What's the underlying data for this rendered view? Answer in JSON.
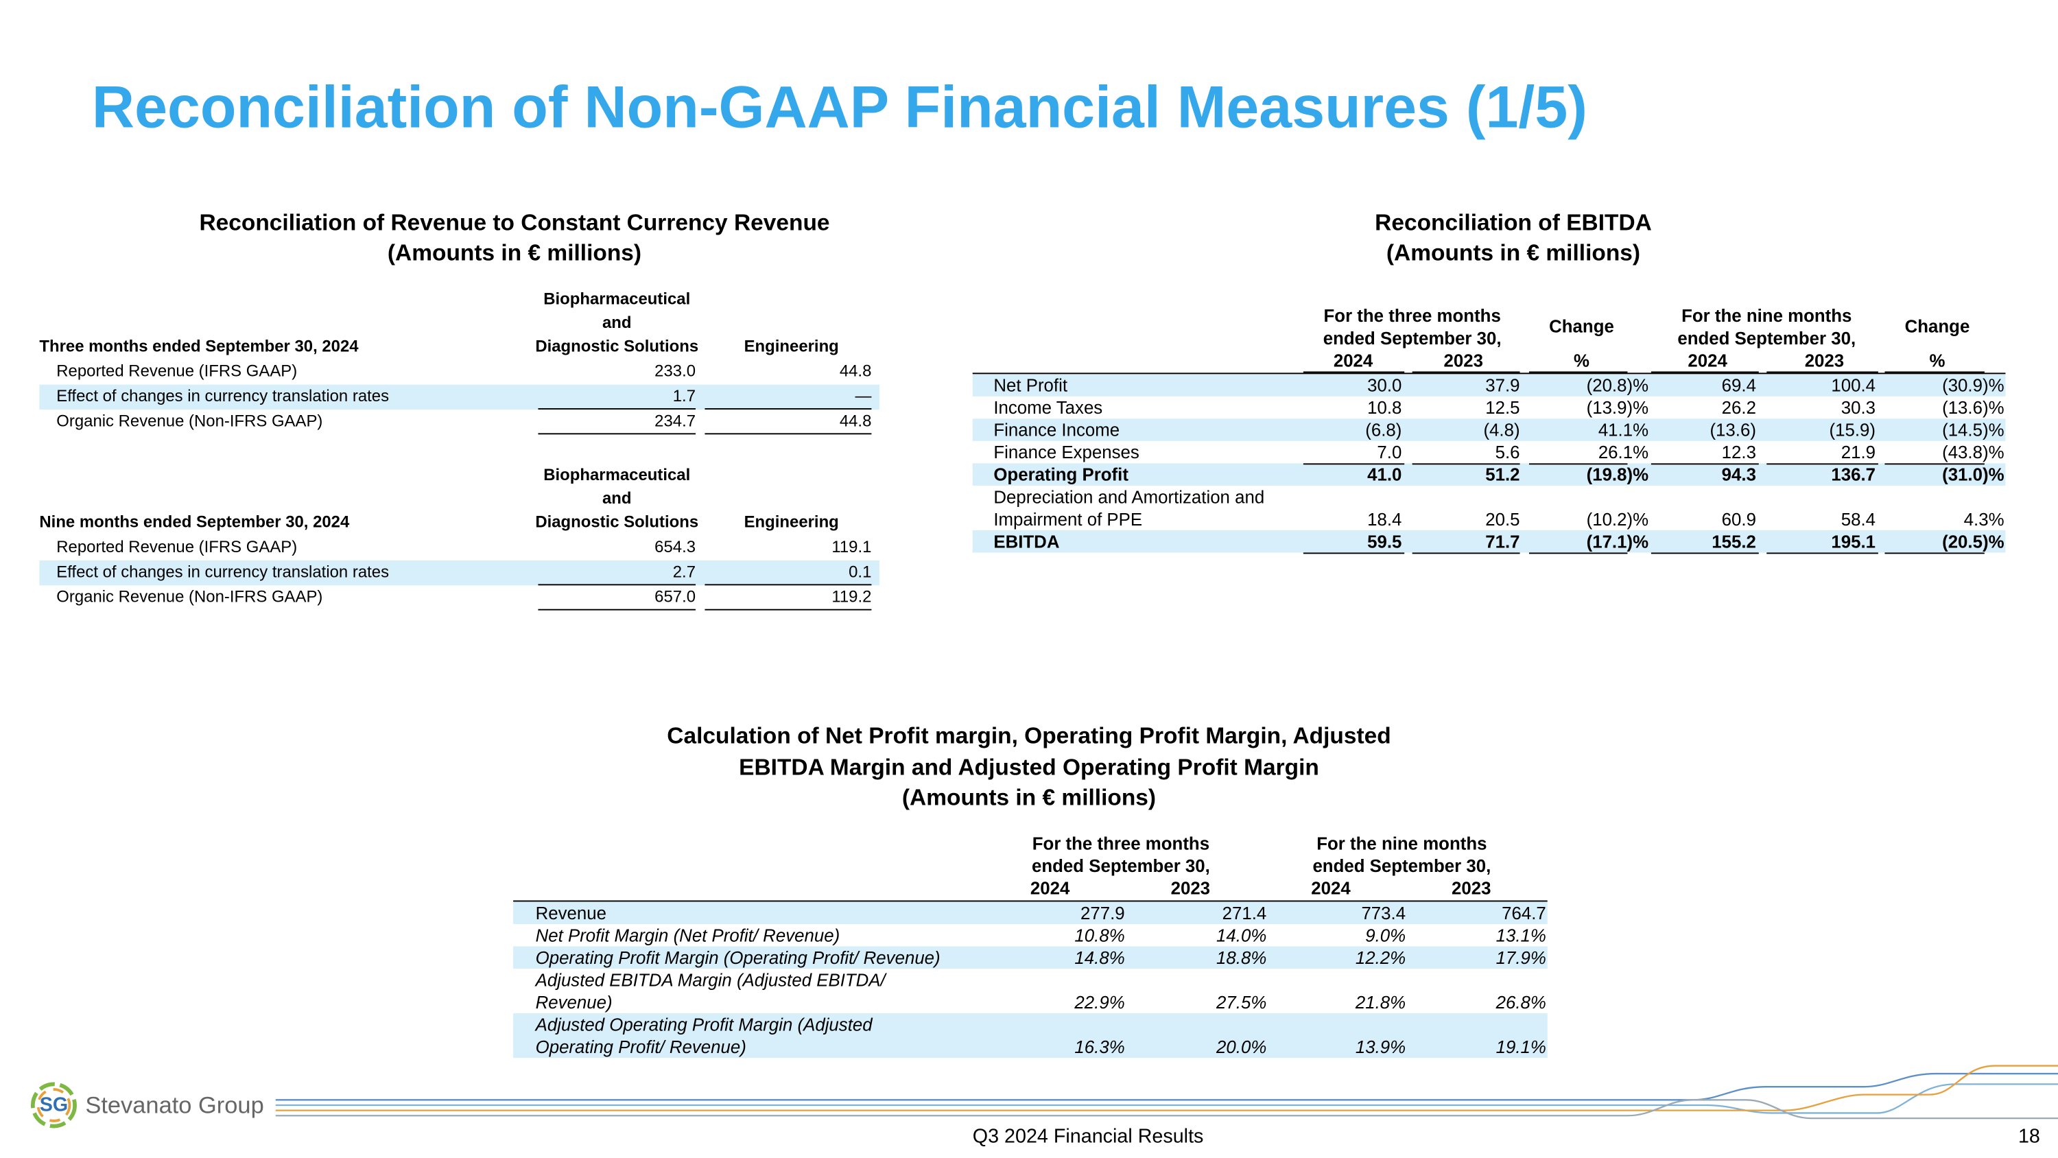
{
  "header": {
    "title": "Reconciliation of Non-GAAP Financial Measures (1/5)"
  },
  "revenue": {
    "title": [
      "Reconciliation of Revenue to Constant Currency Revenue",
      "(Amounts in € millions)"
    ],
    "blocks": [
      {
        "period": "Three months ended September 30, 2024",
        "columns": [
          [
            "Biopharmaceutical",
            "and",
            "Diagnostic Solutions"
          ],
          [
            "Engineering"
          ]
        ],
        "rows": [
          [
            "Reported Revenue (IFRS GAAP)",
            "233.0",
            "44.8"
          ],
          [
            "Effect of changes in currency translation rates",
            "1.7",
            "—"
          ],
          [
            "Organic Revenue (Non-IFRS GAAP)",
            "234.7",
            "44.8"
          ]
        ]
      },
      {
        "period": "Nine months ended September 30, 2024",
        "columns": [
          [
            "Biopharmaceutical",
            "and",
            "Diagnostic Solutions"
          ],
          [
            "Engineering"
          ]
        ],
        "rows": [
          [
            "Reported Revenue (IFRS GAAP)",
            "654.3",
            "119.1"
          ],
          [
            "Effect of changes in currency translation rates",
            "2.7",
            "0.1"
          ],
          [
            "Organic Revenue (Non-IFRS GAAP)",
            "657.0",
            "119.2"
          ]
        ]
      }
    ]
  },
  "ebitda": {
    "title": [
      "Reconciliation of EBITDA",
      "(Amounts in € millions)"
    ],
    "groups": [
      [
        "For the three months",
        "ended September 30,"
      ],
      [
        "For the nine months",
        "ended September 30,"
      ]
    ],
    "change": [
      "Change",
      "Change"
    ],
    "subheaders": [
      "2024",
      "2023",
      "%",
      "2024",
      "2023",
      "%"
    ],
    "rows": [
      {
        "label": [
          "Net Profit"
        ],
        "values": [
          "30.0",
          "37.9",
          "(20.8)%",
          "69.4",
          "100.4",
          "(30.9)%"
        ]
      },
      {
        "label": [
          "Income Taxes"
        ],
        "values": [
          "10.8",
          "12.5",
          "(13.9)%",
          "26.2",
          "30.3",
          "(13.6)%"
        ]
      },
      {
        "label": [
          "Finance Income"
        ],
        "values": [
          "(6.8)",
          "(4.8)",
          "41.1%",
          "(13.6)",
          "(15.9)",
          "(14.5)%"
        ]
      },
      {
        "label": [
          "Finance Expenses"
        ],
        "values": [
          "7.0",
          "5.6",
          "26.1%",
          "12.3",
          "21.9",
          "(43.8)%"
        ]
      },
      {
        "label": [
          "Operating Profit"
        ],
        "values": [
          "41.0",
          "51.2",
          "(19.8)%",
          "94.3",
          "136.7",
          "(31.0)%"
        ]
      },
      {
        "label": [
          "Depreciation and Amortization and",
          "Impairment of PPE"
        ],
        "values": [
          "18.4",
          "20.5",
          "(10.2)%",
          "60.9",
          "58.4",
          "4.3%"
        ]
      },
      {
        "label": [
          "EBITDA"
        ],
        "values": [
          "59.5",
          "71.7",
          "(17.1)%",
          "155.2",
          "195.1",
          "(20.5)%"
        ]
      }
    ]
  },
  "margins": {
    "title": [
      "Calculation of Net Profit margin, Operating Profit Margin, Adjusted",
      "EBITDA Margin and Adjusted Operating Profit Margin",
      "(Amounts in € millions)"
    ],
    "groups": [
      [
        "For the three months",
        "ended September 30,"
      ],
      [
        "For the nine months",
        "ended September 30,"
      ]
    ],
    "subheaders": [
      "2024",
      "2023",
      "2024",
      "2023"
    ],
    "rows": [
      {
        "label": [
          "Revenue"
        ],
        "values": [
          "277.9",
          "271.4",
          "773.4",
          "764.7"
        ]
      },
      {
        "label": [
          "Net Profit Margin (Net Profit/ Revenue)"
        ],
        "values": [
          "10.8%",
          "14.0%",
          "9.0%",
          "13.1%"
        ]
      },
      {
        "label": [
          "Operating Profit Margin (Operating Profit/ Revenue)"
        ],
        "values": [
          "14.8%",
          "18.8%",
          "12.2%",
          "17.9%"
        ]
      },
      {
        "label": [
          "Adjusted EBITDA Margin (Adjusted EBITDA/",
          "Revenue)"
        ],
        "values": [
          "22.9%",
          "27.5%",
          "21.8%",
          "26.8%"
        ]
      },
      {
        "label": [
          "Adjusted Operating Profit Margin (Adjusted",
          "Operating Profit/ Revenue)"
        ],
        "values": [
          "16.3%",
          "20.0%",
          "13.9%",
          "19.1%"
        ]
      }
    ]
  },
  "footer": {
    "logo_mark": "SG",
    "logo": "Stevanato Group",
    "caption": "Q3 2024 Financial Results",
    "page": "18"
  }
}
